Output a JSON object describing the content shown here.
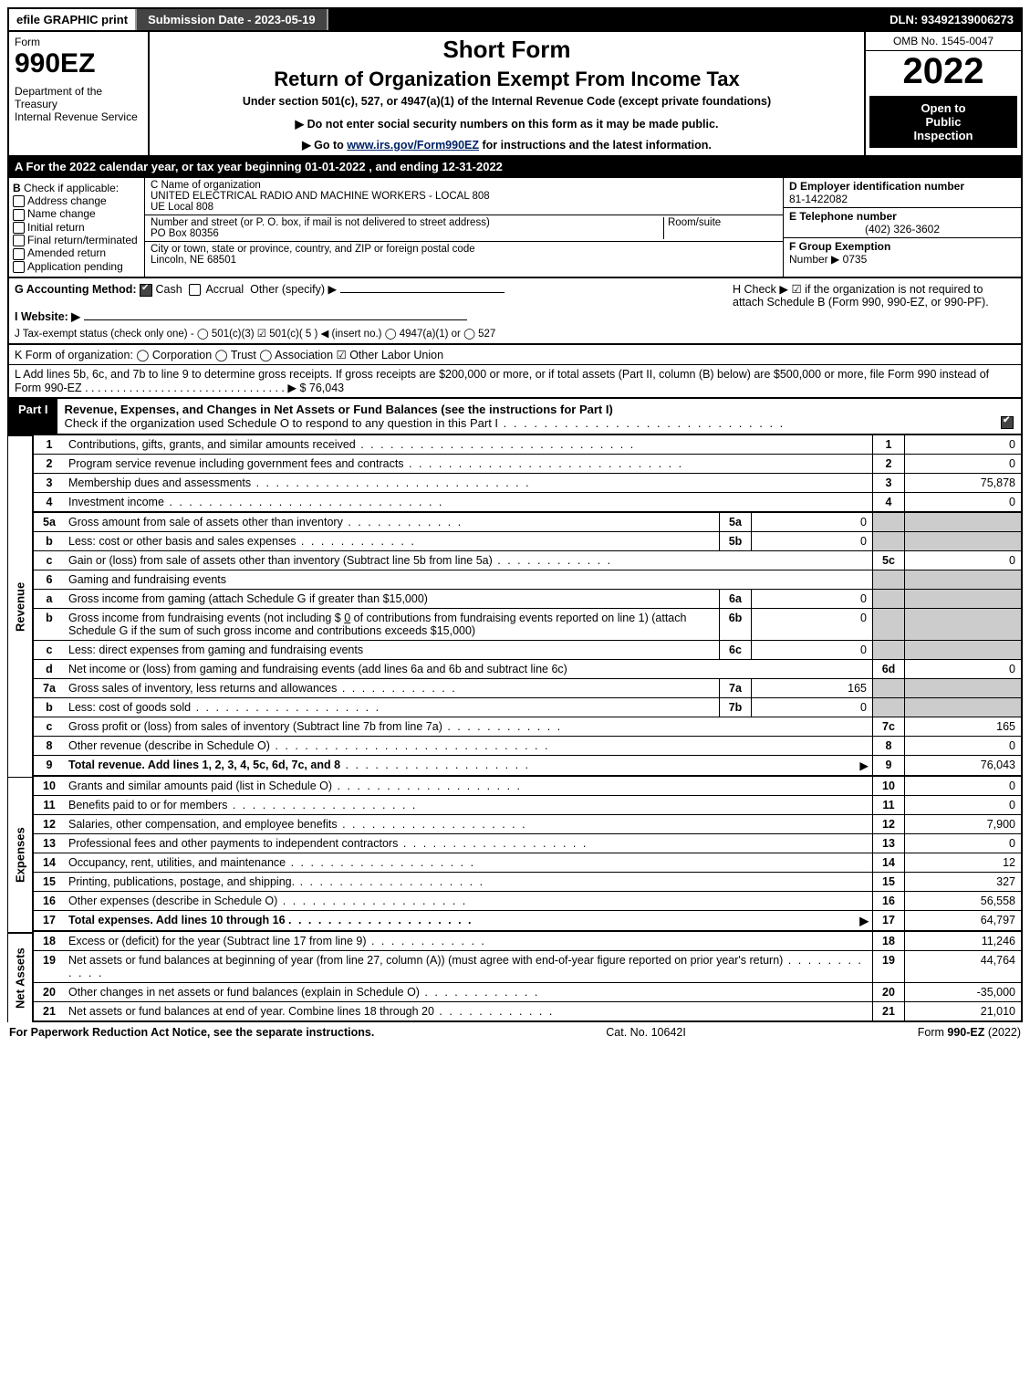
{
  "topbar": {
    "efile": "efile GRAPHIC print",
    "submission": "Submission Date - 2023-05-19",
    "dln": "DLN: 93492139006273"
  },
  "header": {
    "form_label": "Form",
    "form_number": "990EZ",
    "dept1": "Department of the Treasury",
    "dept2": "Internal Revenue Service",
    "short_form": "Short Form",
    "title": "Return of Organization Exempt From Income Tax",
    "subtitle": "Under section 501(c), 527, or 4947(a)(1) of the Internal Revenue Code (except private foundations)",
    "warn": "▶ Do not enter social security numbers on this form as it may be made public.",
    "goto_pre": "▶ Go to ",
    "goto_link": "www.irs.gov/Form990EZ",
    "goto_post": " for instructions and the latest information.",
    "omb": "OMB No. 1545-0047",
    "year": "2022",
    "inspect1": "Open to",
    "inspect2": "Public",
    "inspect3": "Inspection"
  },
  "a_line": "A  For the 2022 calendar year, or tax year beginning 01-01-2022 , and ending 12-31-2022",
  "box_b": {
    "label": "B",
    "title": "Check if applicable:",
    "opts": [
      "Address change",
      "Name change",
      "Initial return",
      "Final return/terminated",
      "Amended return",
      "Application pending"
    ]
  },
  "box_c": {
    "label_c": "C Name of organization",
    "name1": "UNITED ELECTRICAL RADIO AND MACHINE WORKERS - LOCAL 808",
    "name2": "UE Local 808",
    "addr_label": "Number and street (or P. O. box, if mail is not delivered to street address)",
    "room_label": "Room/suite",
    "addr": "PO Box 80356",
    "city_label": "City or town, state or province, country, and ZIP or foreign postal code",
    "city": "Lincoln, NE  68501"
  },
  "box_def": {
    "d_label": "D Employer identification number",
    "ein": "81-1422082",
    "e_label": "E Telephone number",
    "phone": "(402) 326-3602",
    "f_label": "F Group Exemption",
    "f_sub": "Number   ▶ 0735"
  },
  "g": {
    "label": "G Accounting Method:",
    "cash": "Cash",
    "accrual": "Accrual",
    "other": "Other (specify) ▶"
  },
  "h": "H   Check ▶  ☑  if the organization is not required to attach Schedule B (Form 990, 990-EZ, or 990-PF).",
  "i": "I Website: ▶",
  "j": "J Tax-exempt status (check only one) -  ◯ 501(c)(3)  ☑ 501(c)( 5 ) ◀ (insert no.)  ◯ 4947(a)(1) or  ◯ 527",
  "k": "K Form of organization:   ◯ Corporation   ◯ Trust   ◯ Association   ☑ Other Labor Union",
  "l": "L Add lines 5b, 6c, and 7b to line 9 to determine gross receipts. If gross receipts are $200,000 or more, or if total assets (Part II, column (B) below) are $500,000 or more, file Form 990 instead of Form 990-EZ  .  .  .  .  .  .  .  .  .  .  .  .  .  .  .  .  .  .  .  .  .  .  .  .  .  .  .  .  .  .  .  . ▶ $ 76,043",
  "part1": {
    "label": "Part I",
    "title": "Revenue, Expenses, and Changes in Net Assets or Fund Balances (see the instructions for Part I)",
    "check_line": "Check if the organization used Schedule O to respond to any question in this Part I"
  },
  "revenue": [
    {
      "n": "1",
      "t": "Contributions, gifts, grants, and similar amounts received",
      "val": "0"
    },
    {
      "n": "2",
      "t": "Program service revenue including government fees and contracts",
      "val": "0"
    },
    {
      "n": "3",
      "t": "Membership dues and assessments",
      "val": "75,878"
    },
    {
      "n": "4",
      "t": "Investment income",
      "val": "0"
    }
  ],
  "lines5": {
    "5a_t": "Gross amount from sale of assets other than inventory",
    "5a_v": "0",
    "5b_t": "Less: cost or other basis and sales expenses",
    "5b_v": "0",
    "5c_t": "Gain or (loss) from sale of assets other than inventory (Subtract line 5b from line 5a)",
    "5c_v": "0"
  },
  "line6_header": "Gaming and fundraising events",
  "lines6": {
    "6a_t": "Gross income from gaming (attach Schedule G if greater than $15,000)",
    "6a_v": "0",
    "6b_pre": "Gross income from fundraising events (not including $ ",
    "6b_amt": "0",
    "6b_post": " of contributions from fundraising events reported on line 1) (attach Schedule G if the sum of such gross income and contributions exceeds $15,000)",
    "6b_v": "0",
    "6c_t": "Less: direct expenses from gaming and fundraising events",
    "6c_v": "0",
    "6d_t": "Net income or (loss) from gaming and fundraising events (add lines 6a and 6b and subtract line 6c)",
    "6d_v": "0"
  },
  "lines7": {
    "7a_t": "Gross sales of inventory, less returns and allowances",
    "7a_v": "165",
    "7b_t": "Less: cost of goods sold",
    "7b_v": "0",
    "7c_t": "Gross profit or (loss) from sales of inventory (Subtract line 7b from line 7a)",
    "7c_v": "165"
  },
  "line8": {
    "t": "Other revenue (describe in Schedule O)",
    "v": "0"
  },
  "line9": {
    "t": "Total revenue. Add lines 1, 2, 3, 4, 5c, 6d, 7c, and 8",
    "v": "76,043"
  },
  "expenses": [
    {
      "n": "10",
      "t": "Grants and similar amounts paid (list in Schedule O)",
      "v": "0"
    },
    {
      "n": "11",
      "t": "Benefits paid to or for members",
      "v": "0"
    },
    {
      "n": "12",
      "t": "Salaries, other compensation, and employee benefits",
      "v": "7,900"
    },
    {
      "n": "13",
      "t": "Professional fees and other payments to independent contractors",
      "v": "0"
    },
    {
      "n": "14",
      "t": "Occupancy, rent, utilities, and maintenance",
      "v": "12"
    },
    {
      "n": "15",
      "t": "Printing, publications, postage, and shipping.",
      "v": "327"
    },
    {
      "n": "16",
      "t": "Other expenses (describe in Schedule O)",
      "v": "56,558"
    },
    {
      "n": "17",
      "t": "Total expenses. Add lines 10 through 16",
      "v": "64,797"
    }
  ],
  "netassets": [
    {
      "n": "18",
      "t": "Excess or (deficit) for the year (Subtract line 17 from line 9)",
      "v": "11,246"
    },
    {
      "n": "19",
      "t": "Net assets or fund balances at beginning of year (from line 27, column (A)) (must agree with end-of-year figure reported on prior year's return)",
      "v": "44,764"
    },
    {
      "n": "20",
      "t": "Other changes in net assets or fund balances (explain in Schedule O)",
      "v": "-35,000"
    },
    {
      "n": "21",
      "t": "Net assets or fund balances at end of year. Combine lines 18 through 20",
      "v": "21,010"
    }
  ],
  "footer": {
    "left": "For Paperwork Reduction Act Notice, see the separate instructions.",
    "center": "Cat. No. 10642I",
    "right_pre": "Form ",
    "right_bold": "990-EZ",
    "right_post": " (2022)"
  },
  "labels": {
    "revenue": "Revenue",
    "expenses": "Expenses",
    "netassets": "Net Assets"
  }
}
